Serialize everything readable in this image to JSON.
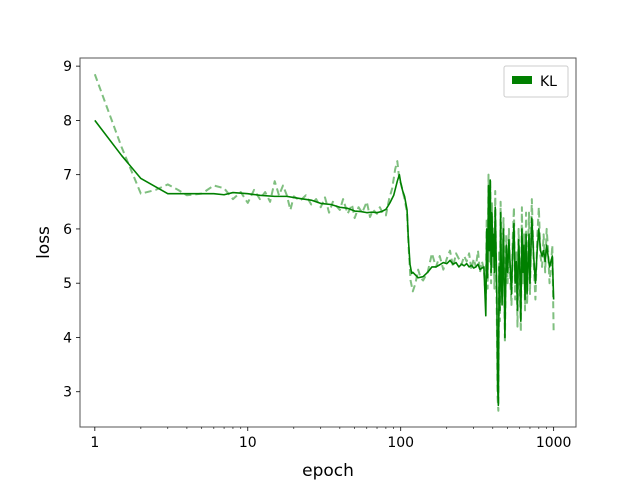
{
  "chart_data": {
    "type": "line",
    "title": "",
    "xlabel": "epoch",
    "ylabel": "loss",
    "xscale": "log",
    "xlim": [
      0.8,
      1400
    ],
    "ylim": [
      2.35,
      9.15
    ],
    "x_ticks": [
      {
        "value": 1,
        "label": "1"
      },
      {
        "value": 10,
        "label": "10"
      },
      {
        "value": 100,
        "label": "100"
      },
      {
        "value": 1000,
        "label": "1000"
      }
    ],
    "y_ticks": [
      {
        "value": 3,
        "label": "3"
      },
      {
        "value": 4,
        "label": "4"
      },
      {
        "value": 5,
        "label": "5"
      },
      {
        "value": 6,
        "label": "6"
      },
      {
        "value": 7,
        "label": "7"
      },
      {
        "value": 8,
        "label": "8"
      },
      {
        "value": 9,
        "label": "9"
      }
    ],
    "grid": false,
    "legend": {
      "position": "top-right",
      "entries": [
        "KL"
      ]
    },
    "series": [
      {
        "name": "KL",
        "style": "solid",
        "color": "#008000",
        "x": [
          1,
          1.5,
          2,
          3,
          4,
          5,
          6,
          7,
          8,
          10,
          12,
          15,
          18,
          22,
          26,
          30,
          35,
          40,
          45,
          50,
          55,
          60,
          65,
          70,
          75,
          80,
          85,
          90,
          95,
          98,
          100,
          103,
          106,
          110,
          112,
          115,
          118,
          120,
          125,
          130,
          140,
          150,
          160,
          170,
          180,
          190,
          200,
          210,
          220,
          230,
          240,
          250,
          260,
          270,
          280,
          290,
          300,
          310,
          320,
          330,
          340,
          350,
          360,
          365,
          370,
          375,
          380,
          385,
          390,
          395,
          400,
          405,
          410,
          415,
          420,
          425,
          430,
          435,
          440,
          445,
          450,
          455,
          460,
          470,
          480,
          490,
          500,
          510,
          520,
          530,
          540,
          550,
          560,
          570,
          580,
          590,
          600,
          610,
          620,
          630,
          640,
          650,
          660,
          670,
          680,
          690,
          700,
          720,
          740,
          760,
          780,
          800,
          820,
          840,
          860,
          880,
          900,
          920,
          940,
          960,
          980,
          1000
        ],
        "y": [
          8.0,
          7.35,
          6.93,
          6.65,
          6.65,
          6.65,
          6.65,
          6.63,
          6.67,
          6.65,
          6.62,
          6.6,
          6.6,
          6.56,
          6.53,
          6.47,
          6.45,
          6.4,
          6.38,
          6.33,
          6.32,
          6.3,
          6.31,
          6.3,
          6.32,
          6.36,
          6.48,
          6.62,
          6.88,
          7.0,
          6.85,
          6.7,
          6.6,
          6.35,
          5.85,
          5.35,
          5.18,
          5.2,
          5.15,
          5.1,
          5.12,
          5.2,
          5.3,
          5.3,
          5.34,
          5.38,
          5.36,
          5.42,
          5.35,
          5.38,
          5.3,
          5.35,
          5.32,
          5.36,
          5.3,
          5.33,
          5.28,
          5.3,
          5.35,
          5.25,
          5.28,
          5.3,
          4.4,
          6.0,
          5.1,
          6.8,
          5.6,
          6.9,
          5.2,
          6.3,
          5.5,
          5.9,
          5.2,
          6.4,
          5.6,
          4.8,
          3.1,
          2.75,
          5.3,
          4.5,
          6.3,
          5.2,
          4.6,
          6.0,
          4.0,
          5.7,
          5.2,
          5.8,
          5.3,
          4.8,
          5.6,
          6.1,
          5.0,
          5.4,
          4.5,
          5.8,
          5.3,
          4.3,
          6.0,
          5.2,
          5.7,
          4.7,
          5.9,
          4.8,
          5.3,
          5.9,
          5.0,
          6.2,
          5.5,
          5.0,
          5.6,
          6.0,
          5.6,
          5.5,
          5.6,
          5.4,
          5.7,
          5.5,
          5.3,
          5.4,
          5.5,
          4.7
        ]
      },
      {
        "name": "",
        "style": "dashed",
        "color": "#008000",
        "opacity": 0.5,
        "x": [
          1,
          1.5,
          2,
          2.5,
          3,
          3.5,
          4,
          5,
          6,
          7,
          8,
          9,
          10,
          11,
          12,
          13,
          14,
          15,
          16,
          17,
          18,
          19,
          20,
          22,
          24,
          26,
          28,
          30,
          32,
          34,
          36,
          38,
          40,
          42,
          45,
          48,
          50,
          53,
          56,
          60,
          63,
          66,
          70,
          73,
          76,
          80,
          84,
          88,
          92,
          95,
          98,
          100,
          103,
          106,
          110,
          113,
          116,
          120,
          125,
          130,
          135,
          140,
          150,
          160,
          170,
          180,
          190,
          200,
          210,
          220,
          230,
          240,
          250,
          260,
          270,
          280,
          290,
          300,
          310,
          320,
          330,
          340,
          350,
          360,
          365,
          370,
          375,
          380,
          385,
          390,
          395,
          400,
          405,
          410,
          415,
          420,
          425,
          430,
          435,
          440,
          445,
          450,
          460,
          470,
          480,
          490,
          500,
          510,
          520,
          530,
          540,
          550,
          560,
          570,
          580,
          590,
          600,
          610,
          620,
          630,
          640,
          650,
          660,
          670,
          680,
          690,
          700,
          720,
          740,
          760,
          780,
          800,
          820,
          840,
          860,
          880,
          900,
          920,
          940,
          960,
          980,
          1000
        ],
        "y": [
          8.85,
          7.5,
          6.65,
          6.72,
          6.82,
          6.72,
          6.62,
          6.65,
          6.8,
          6.75,
          6.55,
          6.68,
          6.48,
          6.72,
          6.55,
          6.68,
          6.5,
          6.88,
          6.62,
          6.8,
          6.62,
          6.35,
          6.6,
          6.52,
          6.62,
          6.45,
          6.55,
          6.4,
          6.58,
          6.3,
          6.5,
          6.42,
          6.35,
          6.55,
          6.28,
          6.45,
          6.2,
          6.4,
          6.3,
          6.5,
          6.22,
          6.35,
          6.28,
          6.4,
          6.3,
          6.25,
          6.55,
          6.75,
          7.1,
          7.25,
          6.9,
          6.85,
          6.7,
          6.55,
          6.3,
          5.6,
          5.05,
          4.85,
          5.0,
          5.25,
          5.1,
          5.05,
          5.2,
          5.55,
          5.3,
          5.5,
          5.25,
          5.45,
          5.6,
          5.3,
          5.55,
          5.45,
          5.35,
          5.5,
          5.4,
          5.55,
          5.25,
          5.45,
          5.3,
          5.6,
          5.2,
          5.4,
          5.25,
          4.7,
          6.2,
          4.9,
          7.0,
          5.4,
          6.9,
          5.0,
          6.5,
          5.3,
          6.0,
          4.9,
          6.7,
          5.4,
          4.4,
          2.9,
          2.65,
          5.6,
          4.3,
          6.5,
          5.0,
          6.2,
          3.9,
          5.9,
          5.0,
          6.0,
          5.1,
          4.6,
          5.8,
          6.4,
          4.7,
          5.6,
          4.2,
          6.0,
          5.1,
          4.1,
          6.4,
          5.0,
          5.9,
          4.5,
          6.3,
          4.6,
          5.5,
          6.3,
          4.8,
          6.55,
          5.4,
          4.7,
          5.8,
          6.4,
          5.5,
          5.3,
          5.9,
          5.2,
          6.0,
          5.6,
          5.0,
          5.3,
          5.7,
          4.1
        ]
      }
    ]
  }
}
